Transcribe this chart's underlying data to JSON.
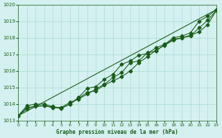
{
  "title": "Graphe pression niveau de la mer (hPa)",
  "xlabel": "Graphe pression niveau de la mer (hPa)",
  "xlim": [
    0,
    23
  ],
  "ylim": [
    1013,
    1020
  ],
  "xticks": [
    0,
    1,
    2,
    3,
    4,
    5,
    6,
    7,
    8,
    9,
    10,
    11,
    12,
    13,
    14,
    15,
    16,
    17,
    18,
    19,
    20,
    21,
    22,
    23
  ],
  "yticks": [
    1013,
    1014,
    1015,
    1016,
    1017,
    1018,
    1019,
    1020
  ],
  "background_color": "#d4f0f0",
  "grid_color": "#aaddcc",
  "line_color": "#1a5c1a",
  "series1": [
    1013.3,
    1013.8,
    1013.85,
    1013.9,
    1013.8,
    1013.8,
    1014.1,
    1014.3,
    1014.6,
    1014.9,
    1015.2,
    1015.6,
    1015.9,
    1016.5,
    1016.6,
    1017.1,
    1017.2,
    1017.6,
    1018.0,
    1018.1,
    1018.3,
    1019.0,
    1019.3,
    1019.7
  ],
  "series2": [
    1013.3,
    1013.7,
    1013.9,
    1013.9,
    1013.8,
    1013.75,
    1014.0,
    1014.4,
    1014.95,
    1015.05,
    1015.5,
    1015.8,
    1016.4,
    1016.6,
    1016.95,
    1017.05,
    1017.4,
    1017.6,
    1017.9,
    1018.0,
    1018.15,
    1018.35,
    1018.8,
    1019.65
  ],
  "series3": [
    1013.3,
    1013.9,
    1014.0,
    1014.0,
    1013.85,
    1013.75,
    1014.0,
    1014.35,
    1014.7,
    1014.8,
    1015.15,
    1015.4,
    1015.65,
    1016.0,
    1016.5,
    1016.85,
    1017.25,
    1017.55,
    1017.85,
    1018.0,
    1018.1,
    1018.6,
    1019.05,
    1019.65
  ]
}
